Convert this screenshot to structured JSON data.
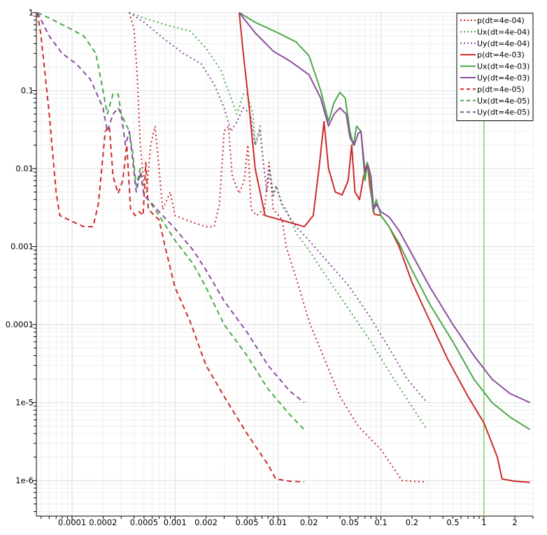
{
  "chart_data": {
    "type": "line",
    "title": "",
    "xlabel": "",
    "ylabel": "",
    "x_scale": "log",
    "y_scale": "log",
    "xlim": [
      4.5e-05,
      3.0
    ],
    "ylim": [
      3.5e-07,
      1.0
    ],
    "grid": true,
    "legend_position": "top-right",
    "colors": {
      "p": "#cc2a2a",
      "Ux": "#4ba84b",
      "Uy": "#8a4c9e",
      "marker_line": "#7fd15a"
    },
    "x_ticks": [
      {
        "value": 0.0001,
        "label": "0.0001"
      },
      {
        "value": 0.0002,
        "label": "0.0002"
      },
      {
        "value": 0.0005,
        "label": "0.0005"
      },
      {
        "value": 0.001,
        "label": "0.001"
      },
      {
        "value": 0.002,
        "label": "0.002"
      },
      {
        "value": 0.005,
        "label": "0.005"
      },
      {
        "value": 0.01,
        "label": "0.01"
      },
      {
        "value": 0.02,
        "label": "0.02"
      },
      {
        "value": 0.05,
        "label": "0.05"
      },
      {
        "value": 0.1,
        "label": "0.1"
      },
      {
        "value": 0.2,
        "label": "0.2"
      },
      {
        "value": 0.5,
        "label": "0.5"
      },
      {
        "value": 1,
        "label": "1"
      },
      {
        "value": 2,
        "label": "2"
      }
    ],
    "y_ticks": [
      {
        "value": 1,
        "label": "1"
      },
      {
        "value": 0.1,
        "label": "0.1"
      },
      {
        "value": 0.01,
        "label": "0.01"
      },
      {
        "value": 0.001,
        "label": "0.001"
      },
      {
        "value": 0.0001,
        "label": "0.0001"
      },
      {
        "value": 1e-05,
        "label": "1e-5"
      },
      {
        "value": 1e-06,
        "label": "1e-6"
      }
    ],
    "vertical_marker_x": 1.0,
    "series": [
      {
        "name": "p(dt=4e-04)",
        "color": "#cc2a2a",
        "style": "dotted",
        "points": [
          [
            0.00036,
            1.0
          ],
          [
            0.0004,
            0.6
          ],
          [
            0.00043,
            0.15
          ],
          [
            0.00046,
            0.02
          ],
          [
            0.0005,
            0.006
          ],
          [
            0.00053,
            0.005
          ],
          [
            0.00058,
            0.02
          ],
          [
            0.00064,
            0.035
          ],
          [
            0.0007,
            0.01
          ],
          [
            0.00076,
            0.003
          ],
          [
            0.0009,
            0.005
          ],
          [
            0.001,
            0.0025
          ],
          [
            0.0014,
            0.0021
          ],
          [
            0.002,
            0.0018
          ],
          [
            0.0024,
            0.0018
          ],
          [
            0.0027,
            0.0035
          ],
          [
            0.003,
            0.03
          ],
          [
            0.0033,
            0.035
          ],
          [
            0.0036,
            0.008
          ],
          [
            0.0042,
            0.0048
          ],
          [
            0.0047,
            0.007
          ],
          [
            0.0051,
            0.02
          ],
          [
            0.0055,
            0.003
          ],
          [
            0.0062,
            0.0025
          ],
          [
            0.0068,
            0.0028
          ],
          [
            0.0073,
            0.0025
          ],
          [
            0.0082,
            0.012
          ],
          [
            0.009,
            0.003
          ],
          [
            0.011,
            0.0022
          ],
          [
            0.012,
            0.001
          ],
          [
            0.016,
            0.0003
          ],
          [
            0.02,
            0.00011
          ],
          [
            0.03,
            3e-05
          ],
          [
            0.04,
            1.2e-05
          ],
          [
            0.06,
            5e-06
          ],
          [
            0.1,
            2.5e-06
          ],
          [
            0.14,
            1.3e-06
          ],
          [
            0.16,
            1e-06
          ],
          [
            0.2,
            9.8e-07
          ],
          [
            0.28,
            9.6e-07
          ]
        ]
      },
      {
        "name": "Ux(dt=4e-04)",
        "color": "#4ba84b",
        "style": "dotted",
        "points": [
          [
            0.00036,
            1.0
          ],
          [
            0.0005,
            0.85
          ],
          [
            0.0008,
            0.7
          ],
          [
            0.0014,
            0.58
          ],
          [
            0.002,
            0.35
          ],
          [
            0.0028,
            0.18
          ],
          [
            0.0035,
            0.08
          ],
          [
            0.004,
            0.05
          ],
          [
            0.0046,
            0.09
          ],
          [
            0.005,
            0.09
          ],
          [
            0.0057,
            0.05
          ],
          [
            0.006,
            0.02
          ],
          [
            0.0067,
            0.035
          ],
          [
            0.0071,
            0.015
          ],
          [
            0.0078,
            0.005
          ],
          [
            0.0083,
            0.01
          ],
          [
            0.009,
            0.0045
          ],
          [
            0.0096,
            0.006
          ],
          [
            0.011,
            0.0035
          ],
          [
            0.012,
            0.003
          ],
          [
            0.015,
            0.0015
          ],
          [
            0.02,
            0.0009
          ],
          [
            0.03,
            0.0004
          ],
          [
            0.05,
            0.00015
          ],
          [
            0.08,
            6e-05
          ],
          [
            0.12,
            2.5e-05
          ],
          [
            0.18,
            1.1e-05
          ],
          [
            0.28,
            4.5e-06
          ]
        ]
      },
      {
        "name": "Uy(dt=4e-04)",
        "color": "#8a4c9e",
        "style": "dotted",
        "points": [
          [
            0.00036,
            1.0
          ],
          [
            0.0005,
            0.75
          ],
          [
            0.0008,
            0.45
          ],
          [
            0.0012,
            0.3
          ],
          [
            0.0018,
            0.22
          ],
          [
            0.0024,
            0.12
          ],
          [
            0.003,
            0.06
          ],
          [
            0.0035,
            0.03
          ],
          [
            0.004,
            0.04
          ],
          [
            0.0046,
            0.06
          ],
          [
            0.0054,
            0.05
          ],
          [
            0.006,
            0.02
          ],
          [
            0.0067,
            0.03
          ],
          [
            0.0072,
            0.012
          ],
          [
            0.0078,
            0.005
          ],
          [
            0.0083,
            0.0095
          ],
          [
            0.009,
            0.0045
          ],
          [
            0.0096,
            0.006
          ],
          [
            0.011,
            0.0033
          ],
          [
            0.015,
            0.0018
          ],
          [
            0.02,
            0.0012
          ],
          [
            0.03,
            0.00065
          ],
          [
            0.05,
            0.0003
          ],
          [
            0.08,
            0.00012
          ],
          [
            0.12,
            5e-05
          ],
          [
            0.18,
            2e-05
          ],
          [
            0.28,
            1e-05
          ]
        ]
      },
      {
        "name": "p(dt=4e-03)",
        "color": "#cc2a2a",
        "style": "solid",
        "points": [
          [
            0.0042,
            1.0
          ],
          [
            0.0046,
            0.3
          ],
          [
            0.0052,
            0.07
          ],
          [
            0.006,
            0.01
          ],
          [
            0.0075,
            0.0025
          ],
          [
            0.012,
            0.0021
          ],
          [
            0.018,
            0.0018
          ],
          [
            0.022,
            0.0025
          ],
          [
            0.025,
            0.01
          ],
          [
            0.028,
            0.04
          ],
          [
            0.031,
            0.01
          ],
          [
            0.036,
            0.005
          ],
          [
            0.042,
            0.0046
          ],
          [
            0.048,
            0.007
          ],
          [
            0.052,
            0.02
          ],
          [
            0.056,
            0.005
          ],
          [
            0.062,
            0.004
          ],
          [
            0.068,
            0.008
          ],
          [
            0.074,
            0.012
          ],
          [
            0.078,
            0.006
          ],
          [
            0.086,
            0.0026
          ],
          [
            0.1,
            0.0025
          ],
          [
            0.12,
            0.0018
          ],
          [
            0.15,
            0.001
          ],
          [
            0.2,
            0.00035
          ],
          [
            0.3,
            0.00011
          ],
          [
            0.45,
            3.5e-05
          ],
          [
            0.7,
            1.2e-05
          ],
          [
            1.0,
            5.5e-06
          ],
          [
            1.35,
            2e-06
          ],
          [
            1.5,
            1.05e-06
          ],
          [
            2.0,
            9.8e-07
          ],
          [
            2.8,
            9.5e-07
          ]
        ]
      },
      {
        "name": "Ux(dt=4e-03)",
        "color": "#4ba84b",
        "style": "solid",
        "points": [
          [
            0.0042,
            1.0
          ],
          [
            0.006,
            0.75
          ],
          [
            0.01,
            0.55
          ],
          [
            0.015,
            0.42
          ],
          [
            0.02,
            0.28
          ],
          [
            0.026,
            0.1
          ],
          [
            0.031,
            0.04
          ],
          [
            0.035,
            0.07
          ],
          [
            0.04,
            0.095
          ],
          [
            0.045,
            0.08
          ],
          [
            0.05,
            0.03
          ],
          [
            0.054,
            0.02
          ],
          [
            0.058,
            0.035
          ],
          [
            0.064,
            0.03
          ],
          [
            0.07,
            0.007
          ],
          [
            0.074,
            0.012
          ],
          [
            0.078,
            0.008
          ],
          [
            0.084,
            0.0028
          ],
          [
            0.09,
            0.004
          ],
          [
            0.1,
            0.0025
          ],
          [
            0.12,
            0.0018
          ],
          [
            0.15,
            0.0011
          ],
          [
            0.2,
            0.0005
          ],
          [
            0.3,
            0.00018
          ],
          [
            0.5,
            6e-05
          ],
          [
            0.8,
            2e-05
          ],
          [
            1.2,
            1e-05
          ],
          [
            1.8,
            6.5e-06
          ],
          [
            2.8,
            4.5e-06
          ]
        ]
      },
      {
        "name": "Uy(dt=4e-03)",
        "color": "#8a4c9e",
        "style": "solid",
        "points": [
          [
            0.0042,
            1.0
          ],
          [
            0.006,
            0.55
          ],
          [
            0.009,
            0.32
          ],
          [
            0.013,
            0.24
          ],
          [
            0.02,
            0.16
          ],
          [
            0.026,
            0.08
          ],
          [
            0.031,
            0.035
          ],
          [
            0.035,
            0.05
          ],
          [
            0.04,
            0.06
          ],
          [
            0.046,
            0.05
          ],
          [
            0.05,
            0.025
          ],
          [
            0.055,
            0.02
          ],
          [
            0.06,
            0.028
          ],
          [
            0.064,
            0.03
          ],
          [
            0.07,
            0.009
          ],
          [
            0.075,
            0.011
          ],
          [
            0.08,
            0.008
          ],
          [
            0.085,
            0.003
          ],
          [
            0.09,
            0.0035
          ],
          [
            0.1,
            0.0028
          ],
          [
            0.12,
            0.0024
          ],
          [
            0.15,
            0.0016
          ],
          [
            0.2,
            0.0008
          ],
          [
            0.3,
            0.0003
          ],
          [
            0.5,
            0.0001
          ],
          [
            0.8,
            4e-05
          ],
          [
            1.2,
            2e-05
          ],
          [
            1.8,
            1.3e-05
          ],
          [
            2.8,
            1e-05
          ]
        ]
      },
      {
        "name": "p(dt=4e-05)",
        "color": "#cc2a2a",
        "style": "dashed",
        "points": [
          [
            4.6e-05,
            1.0
          ],
          [
            5e-05,
            0.5
          ],
          [
            5.5e-05,
            0.15
          ],
          [
            6e-05,
            0.05
          ],
          [
            6.5e-05,
            0.015
          ],
          [
            7e-05,
            0.005
          ],
          [
            7.6e-05,
            0.0025
          ],
          [
            0.0001,
            0.0021
          ],
          [
            0.00013,
            0.0018
          ],
          [
            0.00016,
            0.0018
          ],
          [
            0.00018,
            0.0035
          ],
          [
            0.00021,
            0.03
          ],
          [
            0.00023,
            0.035
          ],
          [
            0.00025,
            0.008
          ],
          [
            0.00028,
            0.0048
          ],
          [
            0.00031,
            0.007
          ],
          [
            0.00034,
            0.02
          ],
          [
            0.00037,
            0.003
          ],
          [
            0.00041,
            0.0025
          ],
          [
            0.00045,
            0.0028
          ],
          [
            0.00049,
            0.0025
          ],
          [
            0.00052,
            0.012
          ],
          [
            0.00055,
            0.003
          ],
          [
            0.0007,
            0.0022
          ],
          [
            0.0008,
            0.001
          ],
          [
            0.001,
            0.0003
          ],
          [
            0.0014,
            0.00011
          ],
          [
            0.002,
            3e-05
          ],
          [
            0.003,
            1.2e-05
          ],
          [
            0.005,
            4e-06
          ],
          [
            0.008,
            1.6e-06
          ],
          [
            0.0095,
            1.05e-06
          ],
          [
            0.013,
            9.8e-07
          ],
          [
            0.018,
            9.6e-07
          ]
        ]
      },
      {
        "name": "Ux(dt=4e-05)",
        "color": "#4ba84b",
        "style": "dashed",
        "points": [
          [
            4.6e-05,
            1.0
          ],
          [
            6e-05,
            0.85
          ],
          [
            9e-05,
            0.65
          ],
          [
            0.00013,
            0.5
          ],
          [
            0.00017,
            0.3
          ],
          [
            0.0002,
            0.1
          ],
          [
            0.00022,
            0.05
          ],
          [
            0.00025,
            0.09
          ],
          [
            0.00028,
            0.09
          ],
          [
            0.0003,
            0.05
          ],
          [
            0.00034,
            0.035
          ],
          [
            0.00036,
            0.03
          ],
          [
            0.00039,
            0.015
          ],
          [
            0.00042,
            0.006
          ],
          [
            0.00046,
            0.01
          ],
          [
            0.0005,
            0.0045
          ],
          [
            0.00055,
            0.004
          ],
          [
            0.0007,
            0.0025
          ],
          [
            0.001,
            0.0012
          ],
          [
            0.0015,
            0.0006
          ],
          [
            0.002,
            0.0003
          ],
          [
            0.003,
            0.0001
          ],
          [
            0.005,
            4e-05
          ],
          [
            0.008,
            1.5e-05
          ],
          [
            0.013,
            7e-06
          ],
          [
            0.018,
            4.5e-06
          ]
        ]
      },
      {
        "name": "Uy(dt=4e-05)",
        "color": "#8a4c9e",
        "style": "dashed",
        "points": [
          [
            4.6e-05,
            1.0
          ],
          [
            6e-05,
            0.5
          ],
          [
            8e-05,
            0.3
          ],
          [
            0.00011,
            0.22
          ],
          [
            0.00015,
            0.14
          ],
          [
            0.0002,
            0.06
          ],
          [
            0.00022,
            0.03
          ],
          [
            0.00025,
            0.05
          ],
          [
            0.00028,
            0.06
          ],
          [
            0.0003,
            0.05
          ],
          [
            0.00033,
            0.02
          ],
          [
            0.00036,
            0.03
          ],
          [
            0.00039,
            0.012
          ],
          [
            0.00042,
            0.005
          ],
          [
            0.00046,
            0.009
          ],
          [
            0.0005,
            0.0045
          ],
          [
            0.00055,
            0.004
          ],
          [
            0.0007,
            0.0028
          ],
          [
            0.001,
            0.0017
          ],
          [
            0.0015,
            0.0009
          ],
          [
            0.002,
            0.0005
          ],
          [
            0.003,
            0.0002
          ],
          [
            0.005,
            8e-05
          ],
          [
            0.008,
            3e-05
          ],
          [
            0.013,
            1.4e-05
          ],
          [
            0.018,
            1e-05
          ]
        ]
      }
    ]
  }
}
